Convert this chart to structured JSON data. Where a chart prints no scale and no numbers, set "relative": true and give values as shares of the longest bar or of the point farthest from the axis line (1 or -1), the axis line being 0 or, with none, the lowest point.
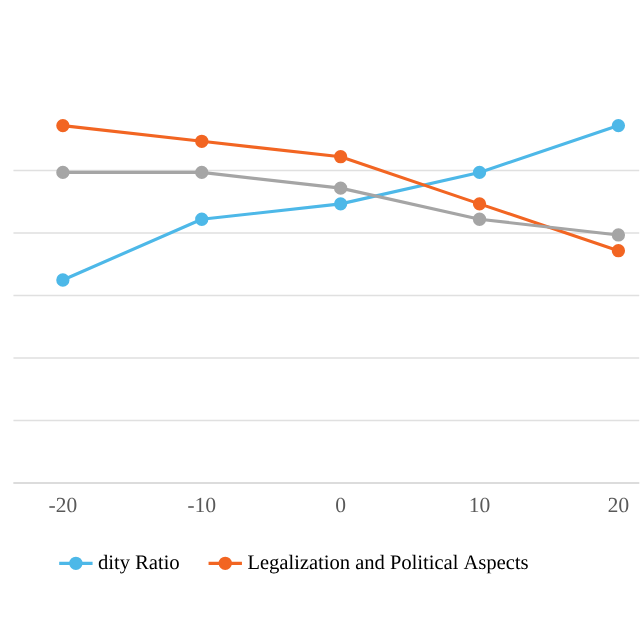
{
  "chart_data": {
    "type": "line",
    "relative": true,
    "x": [
      -20,
      -10,
      0,
      10,
      20
    ],
    "xlim": [
      -23.56,
      21.5
    ],
    "xticks": [
      -20,
      -10,
      0,
      10,
      20
    ],
    "series": [
      {
        "name": "dity Ratio",
        "color": "#4db8e8",
        "values": [
          0.568,
          0.738,
          0.781,
          0.869,
          1
        ]
      },
      {
        "name": "Legalization and Political Aspects",
        "color": "#f26522",
        "values": [
          1,
          0.956,
          0.913,
          0.781,
          0.65
        ]
      },
      {
        "color": "#a5a5a5",
        "values": [
          0.869,
          0.869,
          0.825,
          0.738,
          0.694
        ]
      }
    ],
    "grid": "y",
    "legend": "bottom",
    "marker": "circle",
    "line_style": "solid"
  }
}
